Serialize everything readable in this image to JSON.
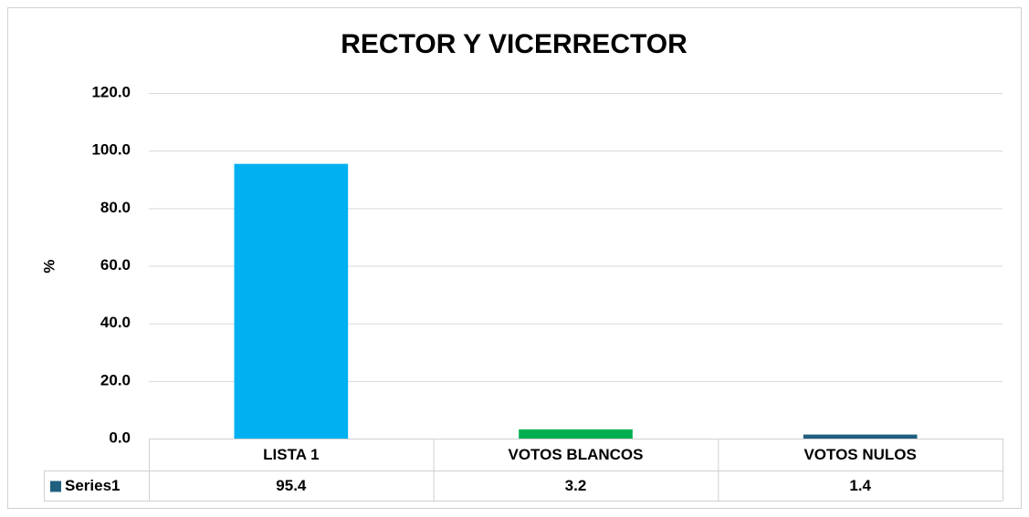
{
  "chart_data": {
    "type": "bar",
    "title": "RECTOR Y VICERRECTOR",
    "y_label": "%",
    "categories": [
      "LISTA 1",
      "VOTOS BLANCOS",
      "VOTOS NULOS"
    ],
    "series": [
      {
        "name": "Series1",
        "color": "#1f5f7f",
        "colors": [
          "#00b0f0",
          "#00b050",
          "#1f5f7f"
        ],
        "values": [
          95.4,
          3.2,
          1.4
        ]
      }
    ],
    "ylim": [
      0,
      120
    ],
    "yticks": [
      {
        "value": 0,
        "label": "0.0"
      },
      {
        "value": 20,
        "label": "20.0"
      },
      {
        "value": 40,
        "label": "40.0"
      },
      {
        "value": 60,
        "label": "60.0"
      },
      {
        "value": 80,
        "label": "80.0"
      },
      {
        "value": 100,
        "label": "100.0"
      },
      {
        "value": 120,
        "label": "120.0"
      }
    ],
    "grid": true,
    "data_table": true
  }
}
